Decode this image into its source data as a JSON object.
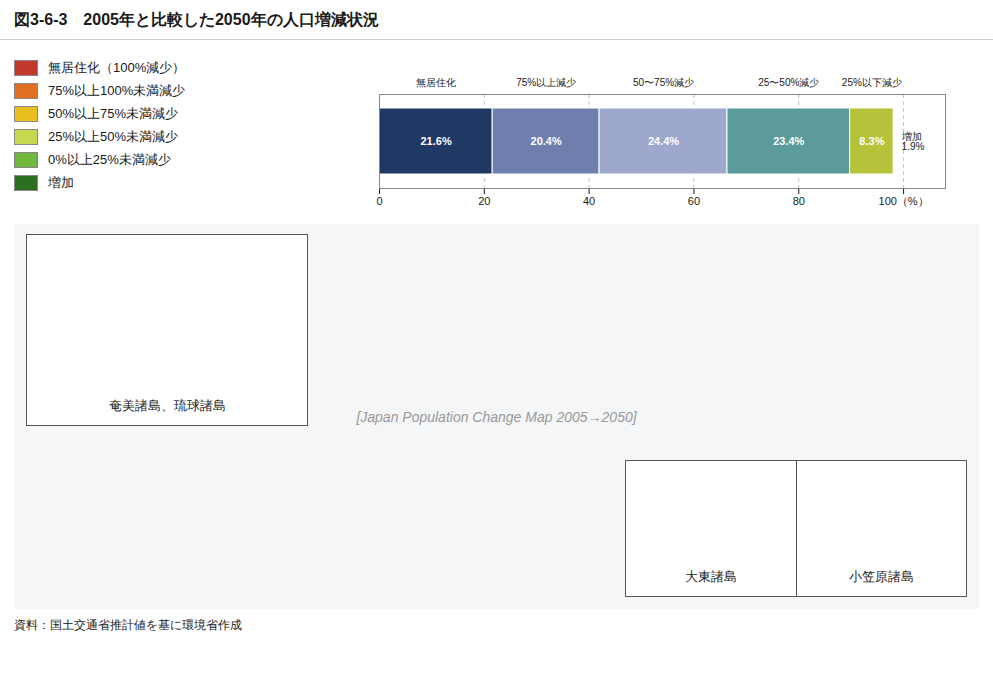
{
  "chart_data": {
    "type": "bar",
    "orientation": "horizontal",
    "stacked": true,
    "title": "図3-6-3　2005年と比較した2050年の人口増減状況",
    "series": [
      {
        "name": "無居住化",
        "color": "#1f3864",
        "values": [
          21.6
        ],
        "value_labels": [
          "21.6%"
        ]
      },
      {
        "name": "75%以上減少",
        "color": "#6e7fad",
        "values": [
          20.4
        ],
        "value_labels": [
          "20.4%"
        ]
      },
      {
        "name": "50〜75%減少",
        "color": "#9ea8cc",
        "values": [
          24.4
        ],
        "value_labels": [
          "24.4%"
        ]
      },
      {
        "name": "25〜50%減少",
        "color": "#5b9b9b",
        "values": [
          23.4
        ],
        "value_labels": [
          "23.4%"
        ]
      },
      {
        "name": "25%以下減少",
        "color": "#b5c23a",
        "values": [
          8.3
        ],
        "value_labels": [
          "8.3%"
        ]
      }
    ],
    "data_labels": true,
    "xlim": [
      0,
      108
    ],
    "xticks": [
      0,
      20,
      40,
      60,
      80,
      {
        "value": 100,
        "label": "100（%）"
      }
    ],
    "grid": true,
    "tick_labels": "x",
    "annotations": [
      "増加\n1.9%"
    ],
    "map_legend": [
      {
        "label": "無居住化（100%減少）",
        "color": "#c0392b"
      },
      {
        "label": "75%以上100%未満減少",
        "color": "#e07020"
      },
      {
        "label": "50%以上75%未満減少",
        "color": "#e8c020"
      },
      {
        "label": "25%以上50%未満減少",
        "color": "#c8d850"
      },
      {
        "label": "0%以上25%未満減少",
        "color": "#70b840"
      },
      {
        "label": "増加",
        "color": "#2d6e20"
      }
    ],
    "map_placeholder": "[Japan Population Change Map 2005→2050]",
    "inset_labels": [
      "奄美諸島、琉球諸島",
      "大東諸島",
      "小笠原諸島"
    ],
    "source": "資料：国土交通省推計値を基に環境省作成"
  }
}
